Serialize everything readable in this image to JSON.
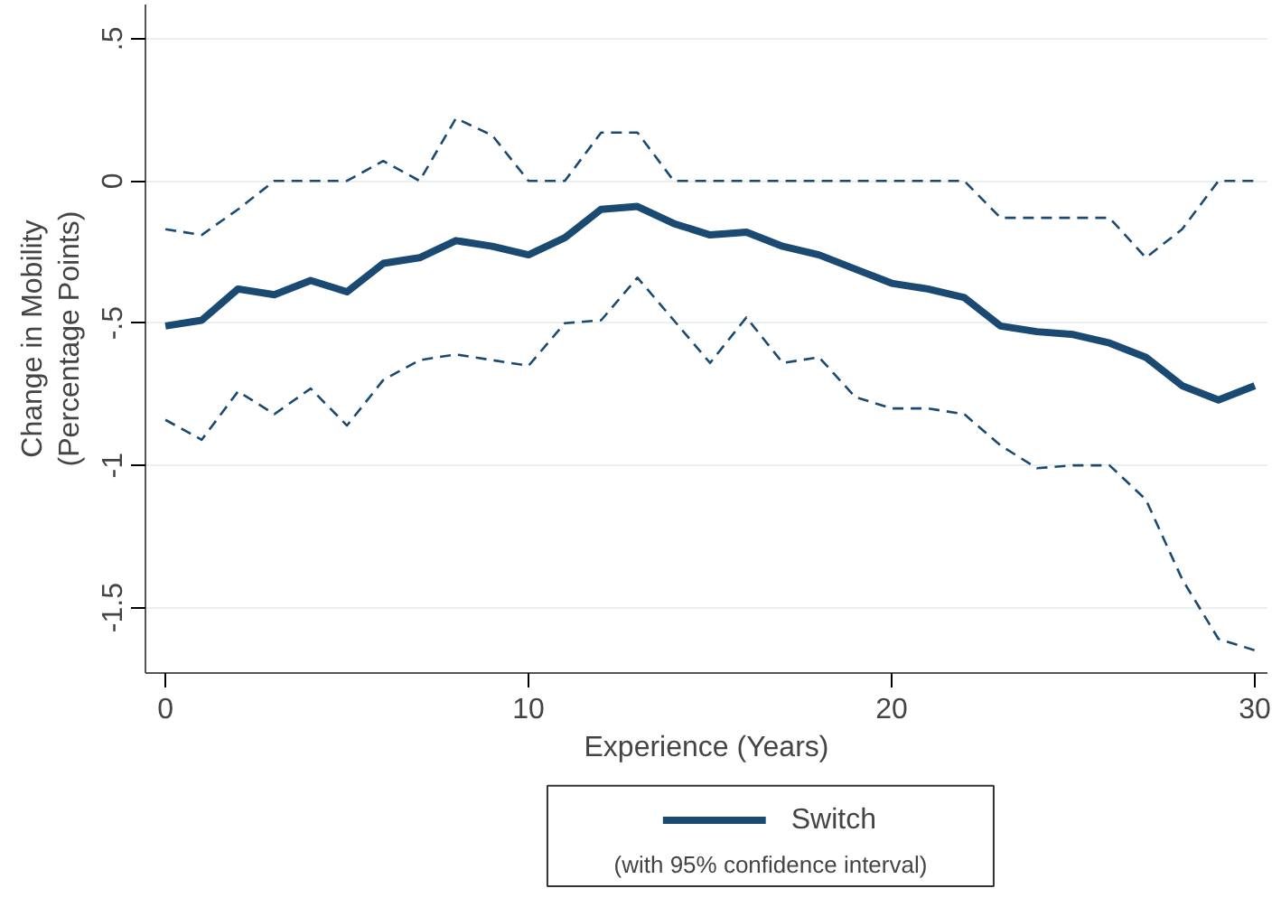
{
  "chart_data": {
    "type": "line",
    "xlabel": "Experience (Years)",
    "ylabel": "Change in Mobility\n(Percentage Points)",
    "x": [
      0,
      1,
      2,
      3,
      4,
      5,
      6,
      7,
      8,
      9,
      10,
      11,
      12,
      13,
      14,
      15,
      16,
      17,
      18,
      19,
      20,
      21,
      22,
      23,
      24,
      25,
      26,
      27,
      28,
      29,
      30
    ],
    "series": [
      {
        "name": "Switch",
        "color": "#1a4a72",
        "values": [
          -0.51,
          -0.49,
          -0.38,
          -0.4,
          -0.35,
          -0.39,
          -0.29,
          -0.27,
          -0.21,
          -0.23,
          -0.26,
          -0.2,
          -0.1,
          -0.09,
          -0.15,
          -0.19,
          -0.18,
          -0.23,
          -0.26,
          -0.31,
          -0.36,
          -0.38,
          -0.41,
          -0.51,
          -0.53,
          -0.54,
          -0.57,
          -0.62,
          -0.72,
          -0.77,
          -0.72
        ]
      },
      {
        "color": "#1a4a72",
        "line_style": "dashed",
        "values": [
          -0.17,
          -0.19,
          -0.1,
          0,
          0,
          0,
          0.07,
          0,
          0.22,
          0.16,
          0,
          0,
          0.17,
          0.17,
          0,
          0,
          0,
          0,
          0,
          0,
          0,
          0,
          0,
          -0.13,
          -0.13,
          -0.13,
          -0.13,
          -0.27,
          -0.17,
          0,
          0
        ]
      },
      {
        "color": "#1a4a72",
        "line_style": "dashed",
        "values": [
          -0.84,
          -0.91,
          -0.74,
          -0.82,
          -0.73,
          -0.86,
          -0.7,
          -0.63,
          -0.61,
          -0.63,
          -0.65,
          -0.5,
          -0.49,
          -0.34,
          -0.49,
          -0.64,
          -0.48,
          -0.64,
          -0.62,
          -0.76,
          -0.8,
          -0.8,
          -0.82,
          -0.93,
          -1.01,
          -1.0,
          -1.0,
          -1.12,
          -1.4,
          -1.61,
          -1.65
        ]
      }
    ],
    "annotations": [
      "(with 95% confidence interval)"
    ],
    "xlim": [
      -0.55,
      30.35
    ],
    "ylim": [
      -1.73,
      0.62
    ],
    "xticks": [
      0,
      10,
      20,
      30
    ],
    "yticks": [
      {
        "value": 0.5,
        "label": ".5"
      },
      {
        "value": 0,
        "label": "0"
      },
      {
        "value": -0.5,
        "label": "-.5"
      },
      {
        "value": -1,
        "label": "-1"
      },
      {
        "value": -1.5,
        "label": "-1.5"
      }
    ],
    "grid": "y",
    "legend": "bottom",
    "line_style": "solid",
    "marker": "none"
  }
}
